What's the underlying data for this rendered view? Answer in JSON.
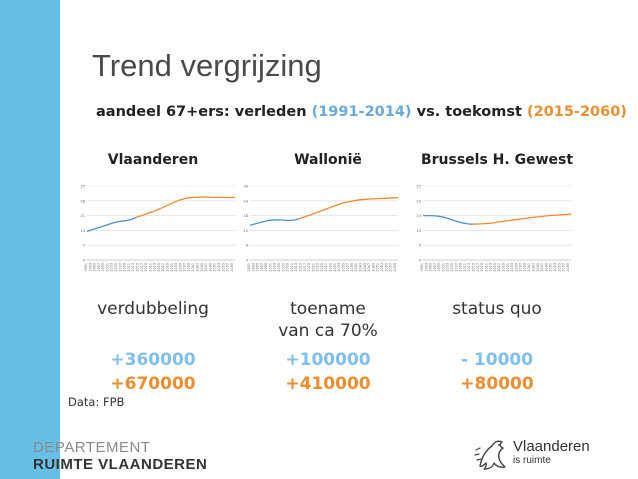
{
  "slide": {
    "title": "Trend vergrijzing",
    "subtitle_main": "aandeel 67+ers: verleden ",
    "subtitle_past": "(1991-2014)",
    "subtitle_vs": " vs. toekomst ",
    "subtitle_future": "(2015-2060)",
    "source": "Data: FPB",
    "dept_line1": "DEPARTEMENT",
    "dept_line2": "RUIMTE VLAANDEREN",
    "logo_name": "Vlaanderen",
    "logo_tagline": "is ruimte",
    "logo_icon": "lion-icon"
  },
  "colors": {
    "past": "#4e8fc7",
    "future": "#ee8a34",
    "accent_bar": "#66c0e6"
  },
  "regions": [
    {
      "name": "Vlaanderen",
      "description": [
        "verdubbeling"
      ],
      "past_change": "+360000",
      "future_change": "+670000"
    },
    {
      "name": "Wallonië",
      "description": [
        "toename",
        "van ca 70%"
      ],
      "past_change": "+100000",
      "future_change": "+410000"
    },
    {
      "name": "Brussels H. Gewest",
      "description": [
        "status quo"
      ],
      "past_change": "- 10000",
      "future_change": "+80000"
    }
  ],
  "chart_data": [
    {
      "type": "line",
      "region": "Vlaanderen",
      "ylim": [
        0,
        35
      ],
      "grid": true,
      "x": [
        1991,
        1993,
        1995,
        1997,
        1999,
        2001,
        2003,
        2005,
        2007,
        2009,
        2011,
        2013,
        2015,
        2017,
        2019,
        2021,
        2023,
        2025,
        2027,
        2029,
        2031,
        2033,
        2035,
        2037,
        2039,
        2041,
        2043,
        2045,
        2047,
        2049,
        2051,
        2053,
        2055,
        2057,
        2059
      ],
      "past_x": [
        1991,
        1994,
        1997,
        2000,
        2003,
        2006,
        2009,
        2012,
        2014
      ],
      "past_y": [
        13.5,
        14.5,
        15.5,
        16.5,
        17.5,
        18.2,
        18.6,
        19.3,
        20.2
      ],
      "future_x": [
        2014,
        2018,
        2022,
        2026,
        2030,
        2034,
        2038,
        2042,
        2046,
        2050,
        2054,
        2058,
        2060
      ],
      "future_y": [
        20.2,
        21.5,
        23,
        24.7,
        26.6,
        28.3,
        29.4,
        29.7,
        29.8,
        29.6,
        29.6,
        29.5,
        29.6
      ]
    },
    {
      "type": "line",
      "region": "Wallonië",
      "ylim": [
        0,
        30
      ],
      "grid": true,
      "x": [
        1991,
        1993,
        1995,
        1997,
        1999,
        2001,
        2003,
        2005,
        2007,
        2009,
        2011,
        2013,
        2015,
        2017,
        2019,
        2021,
        2023,
        2025,
        2027,
        2029,
        2031,
        2033,
        2035,
        2037,
        2039,
        2041,
        2043,
        2045,
        2047,
        2049,
        2051,
        2053,
        2055,
        2057,
        2059
      ],
      "past_x": [
        1991,
        1994,
        1997,
        2000,
        2003,
        2006,
        2009,
        2012,
        2014
      ],
      "past_y": [
        14.1,
        14.8,
        15.5,
        16.1,
        16.3,
        16.2,
        16.0,
        16.2,
        16.8
      ],
      "future_x": [
        2014,
        2018,
        2022,
        2026,
        2030,
        2034,
        2038,
        2042,
        2046,
        2050,
        2054,
        2058,
        2060
      ],
      "future_y": [
        16.8,
        17.9,
        19.2,
        20.5,
        21.8,
        23.0,
        23.8,
        24.4,
        24.7,
        24.9,
        25.0,
        25.2,
        25.3
      ]
    },
    {
      "type": "line",
      "region": "Brussels H. Gewest",
      "ylim": [
        0,
        25
      ],
      "grid": true,
      "x": [
        1991,
        1993,
        1995,
        1997,
        1999,
        2001,
        2003,
        2005,
        2007,
        2009,
        2011,
        2013,
        2015,
        2017,
        2019,
        2021,
        2023,
        2025,
        2027,
        2029,
        2031,
        2033,
        2035,
        2037,
        2039,
        2041,
        2043,
        2045,
        2047,
        2049,
        2051,
        2053,
        2055,
        2057,
        2059
      ],
      "past_x": [
        1991,
        1994,
        1997,
        2000,
        2003,
        2006,
        2009,
        2012,
        2014
      ],
      "past_y": [
        15.0,
        15.0,
        14.9,
        14.6,
        14.0,
        13.2,
        12.6,
        12.2,
        12.1
      ],
      "future_x": [
        2014,
        2018,
        2022,
        2026,
        2030,
        2034,
        2038,
        2042,
        2046,
        2050,
        2054,
        2058,
        2060
      ],
      "future_y": [
        12.1,
        12.2,
        12.4,
        12.8,
        13.2,
        13.6,
        14.0,
        14.4,
        14.7,
        15.0,
        15.2,
        15.4,
        15.6
      ]
    }
  ]
}
